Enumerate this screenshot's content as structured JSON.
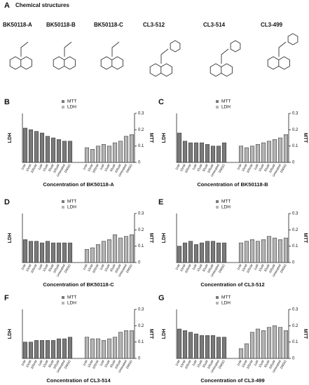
{
  "panel_label": "A",
  "structures_title": "Chemical structures",
  "compounds": [
    "BK50118-A",
    "BK50118-B",
    "BK50118-C",
    "CL3-512",
    "CL3-514",
    "CL3-499"
  ],
  "chart_data": [
    {
      "type": "bar",
      "panel": "B",
      "xlabel": "Concentration of BK50118-A",
      "ylabel": "LDH",
      "y2label": "MTT",
      "categories": [
        "1nM",
        "10nM",
        "100nM",
        "1uM",
        "10uM",
        "50uM",
        "100uM",
        "Untreated",
        "DMSO"
      ],
      "ylim": [
        0,
        1.5
      ],
      "y2lim": [
        0,
        0.3
      ],
      "y2ticks": [
        0,
        0.1,
        0.2,
        0.3
      ],
      "series": [
        {
          "name": "MTT",
          "color": "#7a7a7a",
          "axis": "y2",
          "values": [
            0.21,
            0.2,
            0.19,
            0.18,
            0.16,
            0.15,
            0.14,
            0.13,
            0.13
          ]
        },
        {
          "name": "LDH",
          "color": "#b5b5b5",
          "values": [
            0.45,
            0.4,
            0.5,
            0.55,
            0.5,
            0.6,
            0.65,
            0.8,
            0.85
          ]
        }
      ]
    },
    {
      "type": "bar",
      "panel": "C",
      "xlabel": "Concentration of BK50118-B",
      "ylabel": "LDH",
      "y2label": "MTT",
      "categories": [
        "1nM",
        "10nM",
        "100nM",
        "1uM",
        "10uM",
        "50uM",
        "100uM",
        "Untreated",
        "DMSO"
      ],
      "ylim": [
        0,
        1.5
      ],
      "y2lim": [
        0,
        0.3
      ],
      "y2ticks": [
        0,
        0.1,
        0.2,
        0.3
      ],
      "series": [
        {
          "name": "MTT",
          "color": "#7a7a7a",
          "axis": "y2",
          "values": [
            0.18,
            0.13,
            0.12,
            0.12,
            0.12,
            0.11,
            0.1,
            0.1,
            0.12
          ]
        },
        {
          "name": "LDH",
          "color": "#b5b5b5",
          "values": [
            0.5,
            0.45,
            0.5,
            0.55,
            0.6,
            0.65,
            0.7,
            0.75,
            0.85
          ]
        }
      ]
    },
    {
      "type": "bar",
      "panel": "D",
      "xlabel": "Concentration of BK50118-C",
      "ylabel": "LDH",
      "y2label": "MTT",
      "categories": [
        "1nM",
        "10nM",
        "100nM",
        "1uM",
        "10uM",
        "50uM",
        "100uM",
        "Untreated",
        "DMSO"
      ],
      "ylim": [
        0,
        1.5
      ],
      "y2lim": [
        0,
        0.3
      ],
      "y2ticks": [
        0,
        0.1,
        0.2,
        0.3
      ],
      "series": [
        {
          "name": "MTT",
          "color": "#7a7a7a",
          "axis": "y2",
          "values": [
            0.14,
            0.13,
            0.13,
            0.12,
            0.13,
            0.12,
            0.12,
            0.12,
            0.12
          ]
        },
        {
          "name": "LDH",
          "color": "#b5b5b5",
          "values": [
            0.4,
            0.45,
            0.55,
            0.65,
            0.7,
            0.85,
            0.75,
            0.8,
            0.85
          ]
        }
      ]
    },
    {
      "type": "bar",
      "panel": "E",
      "xlabel": "Concentration of CL3-512",
      "ylabel": "LDH",
      "y2label": "MTT",
      "categories": [
        "1nM",
        "10nM",
        "100nM",
        "1uM",
        "10uM",
        "50uM",
        "100uM",
        "Untreated",
        "DMSO"
      ],
      "ylim": [
        0,
        1.5
      ],
      "y2lim": [
        0,
        0.3
      ],
      "y2ticks": [
        0,
        0.1,
        0.2,
        0.3
      ],
      "series": [
        {
          "name": "MTT",
          "color": "#7a7a7a",
          "axis": "y2",
          "values": [
            0.1,
            0.12,
            0.13,
            0.11,
            0.12,
            0.13,
            0.13,
            0.12,
            0.12
          ]
        },
        {
          "name": "LDH",
          "color": "#b5b5b5",
          "values": [
            0.6,
            0.65,
            0.7,
            0.65,
            0.7,
            0.8,
            0.75,
            0.7,
            0.75
          ]
        }
      ]
    },
    {
      "type": "bar",
      "panel": "F",
      "xlabel": "Concentration of CL3-514",
      "ylabel": "LDH",
      "y2label": "MTT",
      "categories": [
        "1nM",
        "10nM",
        "100nM",
        "1uM",
        "10uM",
        "50uM",
        "100uM",
        "Untreated",
        "DMSO"
      ],
      "ylim": [
        0,
        1.5
      ],
      "y2lim": [
        0,
        0.3
      ],
      "y2ticks": [
        0,
        0.1,
        0.2,
        0.3
      ],
      "series": [
        {
          "name": "MTT",
          "color": "#7a7a7a",
          "axis": "y2",
          "values": [
            0.1,
            0.1,
            0.11,
            0.11,
            0.11,
            0.11,
            0.12,
            0.12,
            0.13
          ]
        },
        {
          "name": "LDH",
          "color": "#b5b5b5",
          "values": [
            0.65,
            0.6,
            0.6,
            0.55,
            0.6,
            0.65,
            0.8,
            0.85,
            0.85
          ]
        }
      ]
    },
    {
      "type": "bar",
      "panel": "G",
      "xlabel": "Concentration of CL3-499",
      "ylabel": "LDH",
      "y2label": "MTT",
      "categories": [
        "1nM",
        "10nM",
        "100nM",
        "1uM",
        "10uM",
        "50uM",
        "100uM",
        "Untreated",
        "DMSO"
      ],
      "ylim": [
        0,
        1.5
      ],
      "y2lim": [
        0,
        0.3
      ],
      "y2ticks": [
        0,
        0.1,
        0.2,
        0.3
      ],
      "series": [
        {
          "name": "MTT",
          "color": "#7a7a7a",
          "axis": "y2",
          "values": [
            0.18,
            0.17,
            0.16,
            0.15,
            0.14,
            0.14,
            0.14,
            0.13,
            0.13
          ]
        },
        {
          "name": "LDH",
          "color": "#b5b5b5",
          "values": [
            0.3,
            0.45,
            0.8,
            0.9,
            0.85,
            0.95,
            1.0,
            0.95,
            0.85
          ]
        }
      ]
    }
  ]
}
